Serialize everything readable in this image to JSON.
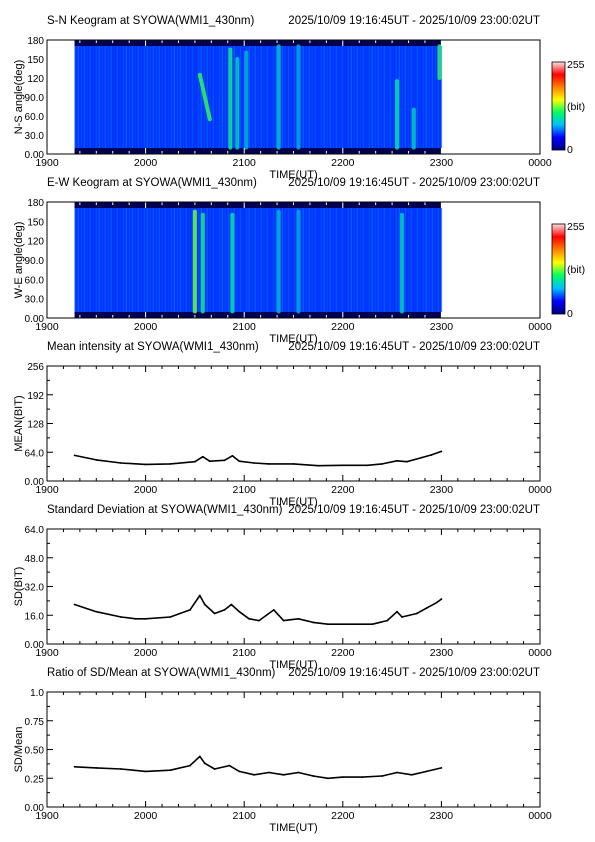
{
  "colorbar": {
    "max_label": "255",
    "unit_label": "(bit)",
    "min_label": "0",
    "colors": [
      "#000080",
      "#0000ff",
      "#00c0ff",
      "#00ff60",
      "#ffff00",
      "#ff8000",
      "#ff0000",
      "#ffe0e0"
    ]
  },
  "chart_data": [
    {
      "type": "heatmap",
      "title": "S-N Keogram at SYOWA(WMI1_430nm)",
      "time_range": "2025/10/09 19:16:45UT - 2025/10/09 23:00:02UT",
      "xlabel": "TIME(UT)",
      "ylabel": "N-S angle(deg)",
      "x_ticks": [
        "1900",
        "2000",
        "2100",
        "2200",
        "2300",
        "0000"
      ],
      "y_ticks": [
        "0.00",
        "30.0",
        "60.0",
        "90.0",
        "120",
        "150",
        "180"
      ],
      "ylim": [
        0,
        180
      ],
      "data_x_range": [
        19.28,
        23.0
      ],
      "value_range": [
        0,
        255
      ],
      "features": [
        {
          "x": 20.55,
          "y_from": 125,
          "y_to": 55,
          "intensity": 150
        },
        {
          "x": 20.86,
          "y_from": 10,
          "y_to": 165,
          "intensity": 130
        },
        {
          "x": 20.93,
          "y_from": 10,
          "y_to": 150,
          "intensity": 110
        },
        {
          "x": 21.02,
          "y_from": 10,
          "y_to": 160,
          "intensity": 100
        },
        {
          "x": 21.35,
          "y_from": 10,
          "y_to": 170,
          "intensity": 105
        },
        {
          "x": 21.55,
          "y_from": 10,
          "y_to": 170,
          "intensity": 95
        },
        {
          "x": 22.55,
          "y_from": 10,
          "y_to": 115,
          "intensity": 120
        },
        {
          "x": 22.72,
          "y_from": 10,
          "y_to": 70,
          "intensity": 110
        },
        {
          "x": 22.98,
          "y_from": 120,
          "y_to": 170,
          "intensity": 140
        }
      ]
    },
    {
      "type": "heatmap",
      "title": "E-W Keogram at SYOWA(WMI1_430nm)",
      "time_range": "2025/10/09 19:16:45UT - 2025/10/09 23:00:02UT",
      "xlabel": "TIME(UT)",
      "ylabel": "W-E angle(deg)",
      "x_ticks": [
        "1900",
        "2000",
        "2100",
        "2200",
        "2300",
        "0000"
      ],
      "y_ticks": [
        "0.00",
        "30.0",
        "60.0",
        "90.0",
        "120",
        "150",
        "180"
      ],
      "ylim": [
        0,
        180
      ],
      "data_x_range": [
        19.28,
        23.0
      ],
      "value_range": [
        0,
        255
      ],
      "features": [
        {
          "x": 20.5,
          "y_from": 10,
          "y_to": 165,
          "intensity": 170
        },
        {
          "x": 20.58,
          "y_from": 10,
          "y_to": 160,
          "intensity": 130
        },
        {
          "x": 20.88,
          "y_from": 10,
          "y_to": 160,
          "intensity": 120
        },
        {
          "x": 21.35,
          "y_from": 10,
          "y_to": 165,
          "intensity": 100
        },
        {
          "x": 21.55,
          "y_from": 10,
          "y_to": 165,
          "intensity": 95
        },
        {
          "x": 22.6,
          "y_from": 10,
          "y_to": 160,
          "intensity": 110
        }
      ]
    },
    {
      "type": "line",
      "title": "Mean intensity at SYOWA(WMI1_430nm)",
      "time_range": "2025/10/09 19:16:45UT - 2025/10/09 23:00:02UT",
      "xlabel": "TIME(UT)",
      "ylabel": "MEAN(BIT)",
      "x_ticks": [
        "1900",
        "2000",
        "2100",
        "2200",
        "2300",
        "0000"
      ],
      "y_ticks": [
        "0.00",
        "64.0",
        "128",
        "192",
        "256"
      ],
      "ylim": [
        0,
        256
      ],
      "x": [
        19.28,
        19.5,
        19.75,
        20.0,
        20.25,
        20.5,
        20.58,
        20.65,
        20.8,
        20.88,
        20.95,
        21.1,
        21.25,
        21.5,
        21.75,
        22.0,
        22.25,
        22.4,
        22.55,
        22.65,
        22.8,
        22.9,
        23.0
      ],
      "values": [
        57,
        47,
        40,
        37,
        38,
        43,
        54,
        44,
        46,
        56,
        44,
        40,
        38,
        38,
        34,
        35,
        35,
        38,
        45,
        43,
        52,
        58,
        66
      ]
    },
    {
      "type": "line",
      "title": "Standard Deviation at SYOWA(WMI1_430nm)",
      "time_range": "2025/10/09 19:16:45UT - 2025/10/09 23:00:02UT",
      "xlabel": "TIME(UT)",
      "ylabel": "SD(BIT)",
      "x_ticks": [
        "1900",
        "2000",
        "2100",
        "2200",
        "2300",
        "0000"
      ],
      "y_ticks": [
        "0.00",
        "16.0",
        "32.0",
        "48.0",
        "64.0"
      ],
      "ylim": [
        0,
        64
      ],
      "x": [
        19.28,
        19.5,
        19.75,
        19.9,
        20.0,
        20.25,
        20.45,
        20.55,
        20.6,
        20.7,
        20.8,
        20.87,
        20.95,
        21.05,
        21.15,
        21.3,
        21.4,
        21.55,
        21.7,
        21.85,
        22.0,
        22.15,
        22.3,
        22.45,
        22.55,
        22.6,
        22.75,
        22.85,
        22.95,
        23.0
      ],
      "values": [
        22,
        18,
        15,
        14,
        14,
        15,
        19,
        27,
        22,
        17,
        19,
        22,
        18,
        14,
        13,
        19,
        13,
        14,
        12,
        11,
        11,
        11,
        11,
        13,
        18,
        15,
        17,
        20,
        23,
        25
      ]
    },
    {
      "type": "line",
      "title": "Ratio of SD/Mean at SYOWA(WMI1_430nm)",
      "time_range": "2025/10/09 19:16:45UT - 2025/10/09 23:00:02UT",
      "xlabel": "TIME(UT)",
      "ylabel": "SD/Mean",
      "x_ticks": [
        "1900",
        "2000",
        "2100",
        "2200",
        "2300",
        "0000"
      ],
      "y_ticks": [
        "0.00",
        "0.25",
        "0.50",
        "0.75",
        "1.0"
      ],
      "ylim": [
        0,
        1
      ],
      "x": [
        19.28,
        19.5,
        19.75,
        20.0,
        20.25,
        20.45,
        20.55,
        20.6,
        20.7,
        20.85,
        20.95,
        21.1,
        21.25,
        21.4,
        21.55,
        21.7,
        21.85,
        22.0,
        22.2,
        22.4,
        22.55,
        22.7,
        22.85,
        23.0
      ],
      "values": [
        0.35,
        0.34,
        0.33,
        0.31,
        0.32,
        0.36,
        0.44,
        0.38,
        0.33,
        0.36,
        0.31,
        0.28,
        0.3,
        0.28,
        0.3,
        0.27,
        0.25,
        0.26,
        0.26,
        0.27,
        0.3,
        0.28,
        0.31,
        0.34
      ]
    }
  ]
}
